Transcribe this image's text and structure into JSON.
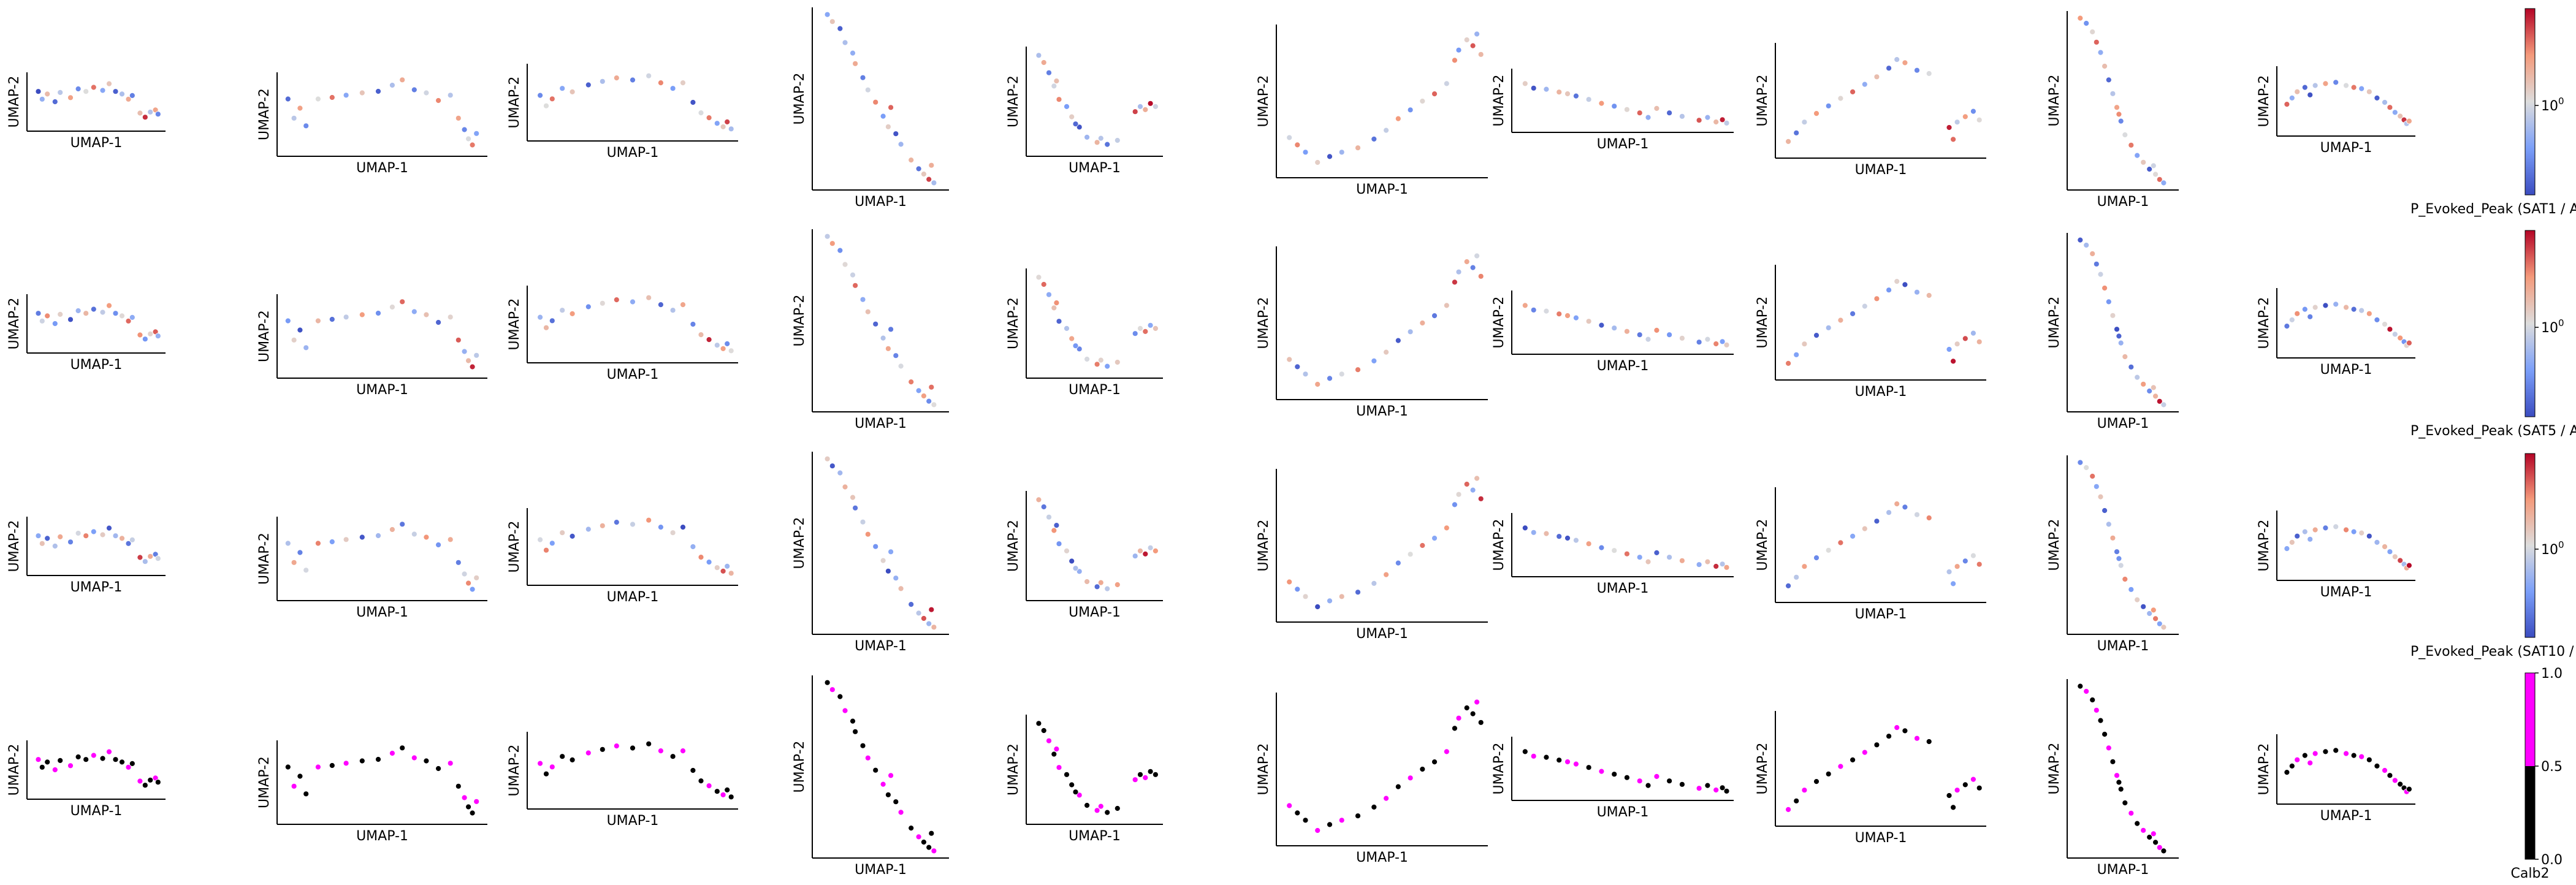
{
  "chart_data": {
    "type": "scatter",
    "title": "",
    "grid": false,
    "rows": 4,
    "columns": 10,
    "xlabel": "UMAP-1",
    "ylabel": "UMAP-2",
    "rows_info": [
      {
        "colorbar_label": "P_Evoked_Peak (SAT1 / AC",
        "colorbar_tick": "10",
        "colorbar_tick_exp": "0",
        "cmap": "coolwarm"
      },
      {
        "colorbar_label": "P_Evoked_Peak (SAT5 / AC",
        "colorbar_tick": "10",
        "colorbar_tick_exp": "0",
        "cmap": "coolwarm"
      },
      {
        "colorbar_label": "P_Evoked_Peak (SAT10 / A",
        "colorbar_tick": "10",
        "colorbar_tick_exp": "0",
        "cmap": "coolwarm"
      },
      {
        "colorbar_label": "Calb2",
        "colorbar_ticks": [
          "0.0",
          "0.5",
          "1.0"
        ],
        "cmap": "binary-magenta"
      }
    ],
    "colors": {
      "cool": "#3b4cc0",
      "mid": "#dddddd",
      "warm": "#b40426",
      "calb2_off": "#000000",
      "calb2_on": "#ff00ff"
    }
  }
}
